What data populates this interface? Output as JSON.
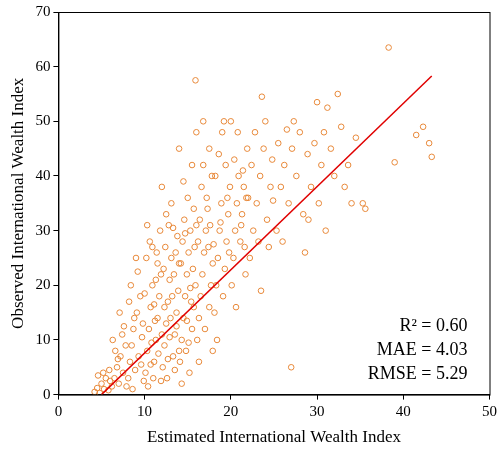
{
  "chart_data": {
    "type": "scatter",
    "x_label": "Estimated International Wealth Index",
    "y_label": "Observed International Wealth Index",
    "xlim": [
      0,
      50
    ],
    "xticks": [
      0,
      10,
      20,
      30,
      40,
      50
    ],
    "ylim": [
      0,
      70
    ],
    "yticks": [
      0,
      10,
      20,
      30,
      40,
      50,
      60,
      70
    ],
    "grid": false,
    "annotations": [
      "R² = 0.60",
      "MAE = 4.03",
      "RMSE = 5.29"
    ],
    "series": [
      {
        "type": "scatter",
        "color": "#e8893a",
        "marker": "circle",
        "x": [
          4.2,
          4.5,
          4.8,
          5.0,
          5.3,
          5.5,
          5.8,
          6.0,
          4.6,
          5.2,
          5.9,
          6.2,
          6.5,
          6.8,
          7.0,
          7.2,
          7.5,
          7.8,
          6.6,
          7.4,
          7.9,
          6.9,
          7.6,
          6.3,
          7.1,
          8.1,
          8.3,
          8.5,
          8.7,
          8.9,
          9.1,
          9.3,
          9.5,
          9.7,
          9.9,
          8.4,
          9.2,
          8.8,
          9.6,
          8.2,
          9.8,
          9.0,
          8.6,
          10.1,
          10.3,
          10.5,
          10.7,
          10.9,
          11.1,
          11.3,
          11.5,
          11.7,
          11.9,
          10.2,
          10.6,
          11.0,
          11.4,
          11.8,
          10.4,
          10.8,
          11.2,
          11.6,
          12.0,
          10.0,
          11.5,
          10.3,
          11.9,
          10.7,
          11.1,
          11.3,
          10.9,
          12.1,
          12.3,
          12.5,
          12.7,
          12.9,
          13.1,
          13.3,
          13.5,
          13.7,
          13.9,
          12.2,
          12.4,
          12.6,
          12.8,
          13.0,
          13.2,
          13.4,
          13.6,
          13.8,
          12.5,
          13.1,
          12.0,
          13.5,
          14.0,
          12.9,
          13.7,
          12.3,
          14.0,
          13.3,
          12.7,
          14.1,
          14.3,
          14.5,
          14.7,
          14.9,
          15.1,
          15.3,
          15.5,
          15.7,
          15.9,
          14.2,
          14.4,
          14.6,
          14.8,
          15.0,
          15.2,
          15.4,
          15.6,
          15.8,
          16.0,
          14.5,
          15.5,
          14.0,
          15.9,
          14.3,
          15.1,
          14.9,
          15.7,
          14.7,
          15.3,
          16.1,
          16.3,
          16.5,
          16.7,
          16.9,
          17.1,
          17.3,
          17.5,
          17.7,
          17.9,
          16.2,
          16.4,
          16.6,
          16.8,
          17.0,
          17.2,
          17.4,
          17.6,
          17.8,
          16.0,
          17.5,
          16.3,
          17.9,
          16.8,
          18.1,
          18.3,
          18.5,
          18.7,
          18.9,
          19.1,
          19.3,
          19.5,
          19.7,
          19.9,
          18.2,
          18.6,
          19.0,
          19.4,
          19.8,
          18.4,
          19.2,
          18.8,
          19.6,
          18.0,
          20.1,
          20.3,
          20.5,
          20.7,
          20.9,
          21.1,
          21.3,
          21.5,
          21.7,
          21.9,
          20.4,
          20.8,
          21.2,
          21.6,
          20.0,
          21.8,
          20.6,
          21.4,
          22.2,
          22.6,
          23.0,
          23.4,
          23.8,
          24.2,
          24.6,
          22.4,
          22.8,
          23.2,
          23.6,
          24.0,
          24.4,
          24.8,
          22.0,
          23.5,
          24.9,
          25.3,
          25.8,
          26.2,
          26.7,
          27.1,
          27.6,
          28.0,
          28.4,
          28.9,
          29.3,
          29.7,
          25.5,
          26.0,
          27.0,
          27.3,
          28.6,
          26.5,
          29.0,
          30.2,
          30.5,
          30.8,
          31.2,
          31.6,
          32.0,
          32.4,
          32.8,
          33.2,
          33.6,
          34.0,
          30.0,
          31.0,
          34.5,
          35.3,
          35.6,
          38.3,
          39.0,
          41.5,
          42.3,
          43.0,
          43.3
        ],
        "values": [
          0.5,
          1.2,
          0.3,
          2.0,
          1.0,
          3.0,
          0.8,
          2.5,
          3.5,
          4.0,
          4.5,
          1.5,
          3.0,
          5.0,
          2.0,
          7.0,
          4.0,
          9.0,
          8.0,
          11.0,
          1.5,
          6.5,
          12.5,
          10.0,
          15.0,
          3.0,
          6.0,
          9.0,
          12.0,
          4.5,
          15.0,
          7.0,
          18.0,
          10.5,
          2.5,
          20.0,
          22.5,
          14.0,
          5.5,
          17.0,
          13.0,
          25.0,
          1.0,
          4,
          8,
          12,
          16,
          20,
          6,
          10,
          14,
          18,
          22,
          25,
          28,
          3,
          26,
          30,
          1.5,
          9.5,
          13.5,
          7.5,
          11,
          18.5,
          24,
          31,
          2.5,
          5.5,
          16.5,
          21,
          27,
          5,
          9,
          13,
          17,
          21,
          25,
          7,
          11,
          15,
          19,
          23,
          27,
          3,
          31,
          14,
          18,
          22,
          26,
          29,
          33,
          35,
          38,
          4.5,
          8,
          10.5,
          12.5,
          16,
          24,
          30.5,
          6.5,
          6,
          10,
          14,
          18,
          22,
          26,
          30,
          12,
          16,
          20,
          24,
          28,
          32,
          8,
          36,
          4,
          17,
          23,
          27,
          31,
          39,
          42,
          45,
          57.5,
          2,
          9.5,
          13.5,
          34,
          29.5,
          19.5,
          10,
          14,
          18,
          22,
          26,
          30,
          34,
          16,
          20,
          24,
          28,
          32,
          38,
          42,
          12,
          36,
          27,
          31,
          40,
          48,
          45,
          6,
          8,
          50,
          15,
          20,
          25,
          30,
          35,
          18,
          23,
          28,
          33,
          38,
          40,
          44,
          48,
          42,
          26,
          10,
          50,
          31.5,
          36,
          27.5,
          20,
          25,
          30,
          35,
          40,
          28,
          33,
          38,
          22,
          45,
          43,
          48,
          31,
          27,
          50,
          36,
          16,
          41,
          25,
          30,
          35,
          40,
          45,
          32,
          38,
          42,
          48,
          28,
          54.5,
          50,
          27,
          43,
          36,
          19,
          35.5,
          30,
          38,
          42,
          35,
          45,
          40,
          48,
          33,
          44,
          38,
          46,
          46,
          28,
          5,
          50,
          26,
          48.5,
          32,
          35,
          42,
          48,
          52.5,
          45,
          40,
          55,
          49,
          38,
          42,
          35,
          53.5,
          30,
          47,
          35,
          34,
          63.5,
          42.5,
          47.5,
          49,
          46,
          43.5
        ]
      },
      {
        "type": "line",
        "color": "#e00000",
        "line_style": "solid",
        "x": [
          5.0,
          43.3
        ],
        "values": [
          0,
          58.3
        ]
      }
    ]
  }
}
